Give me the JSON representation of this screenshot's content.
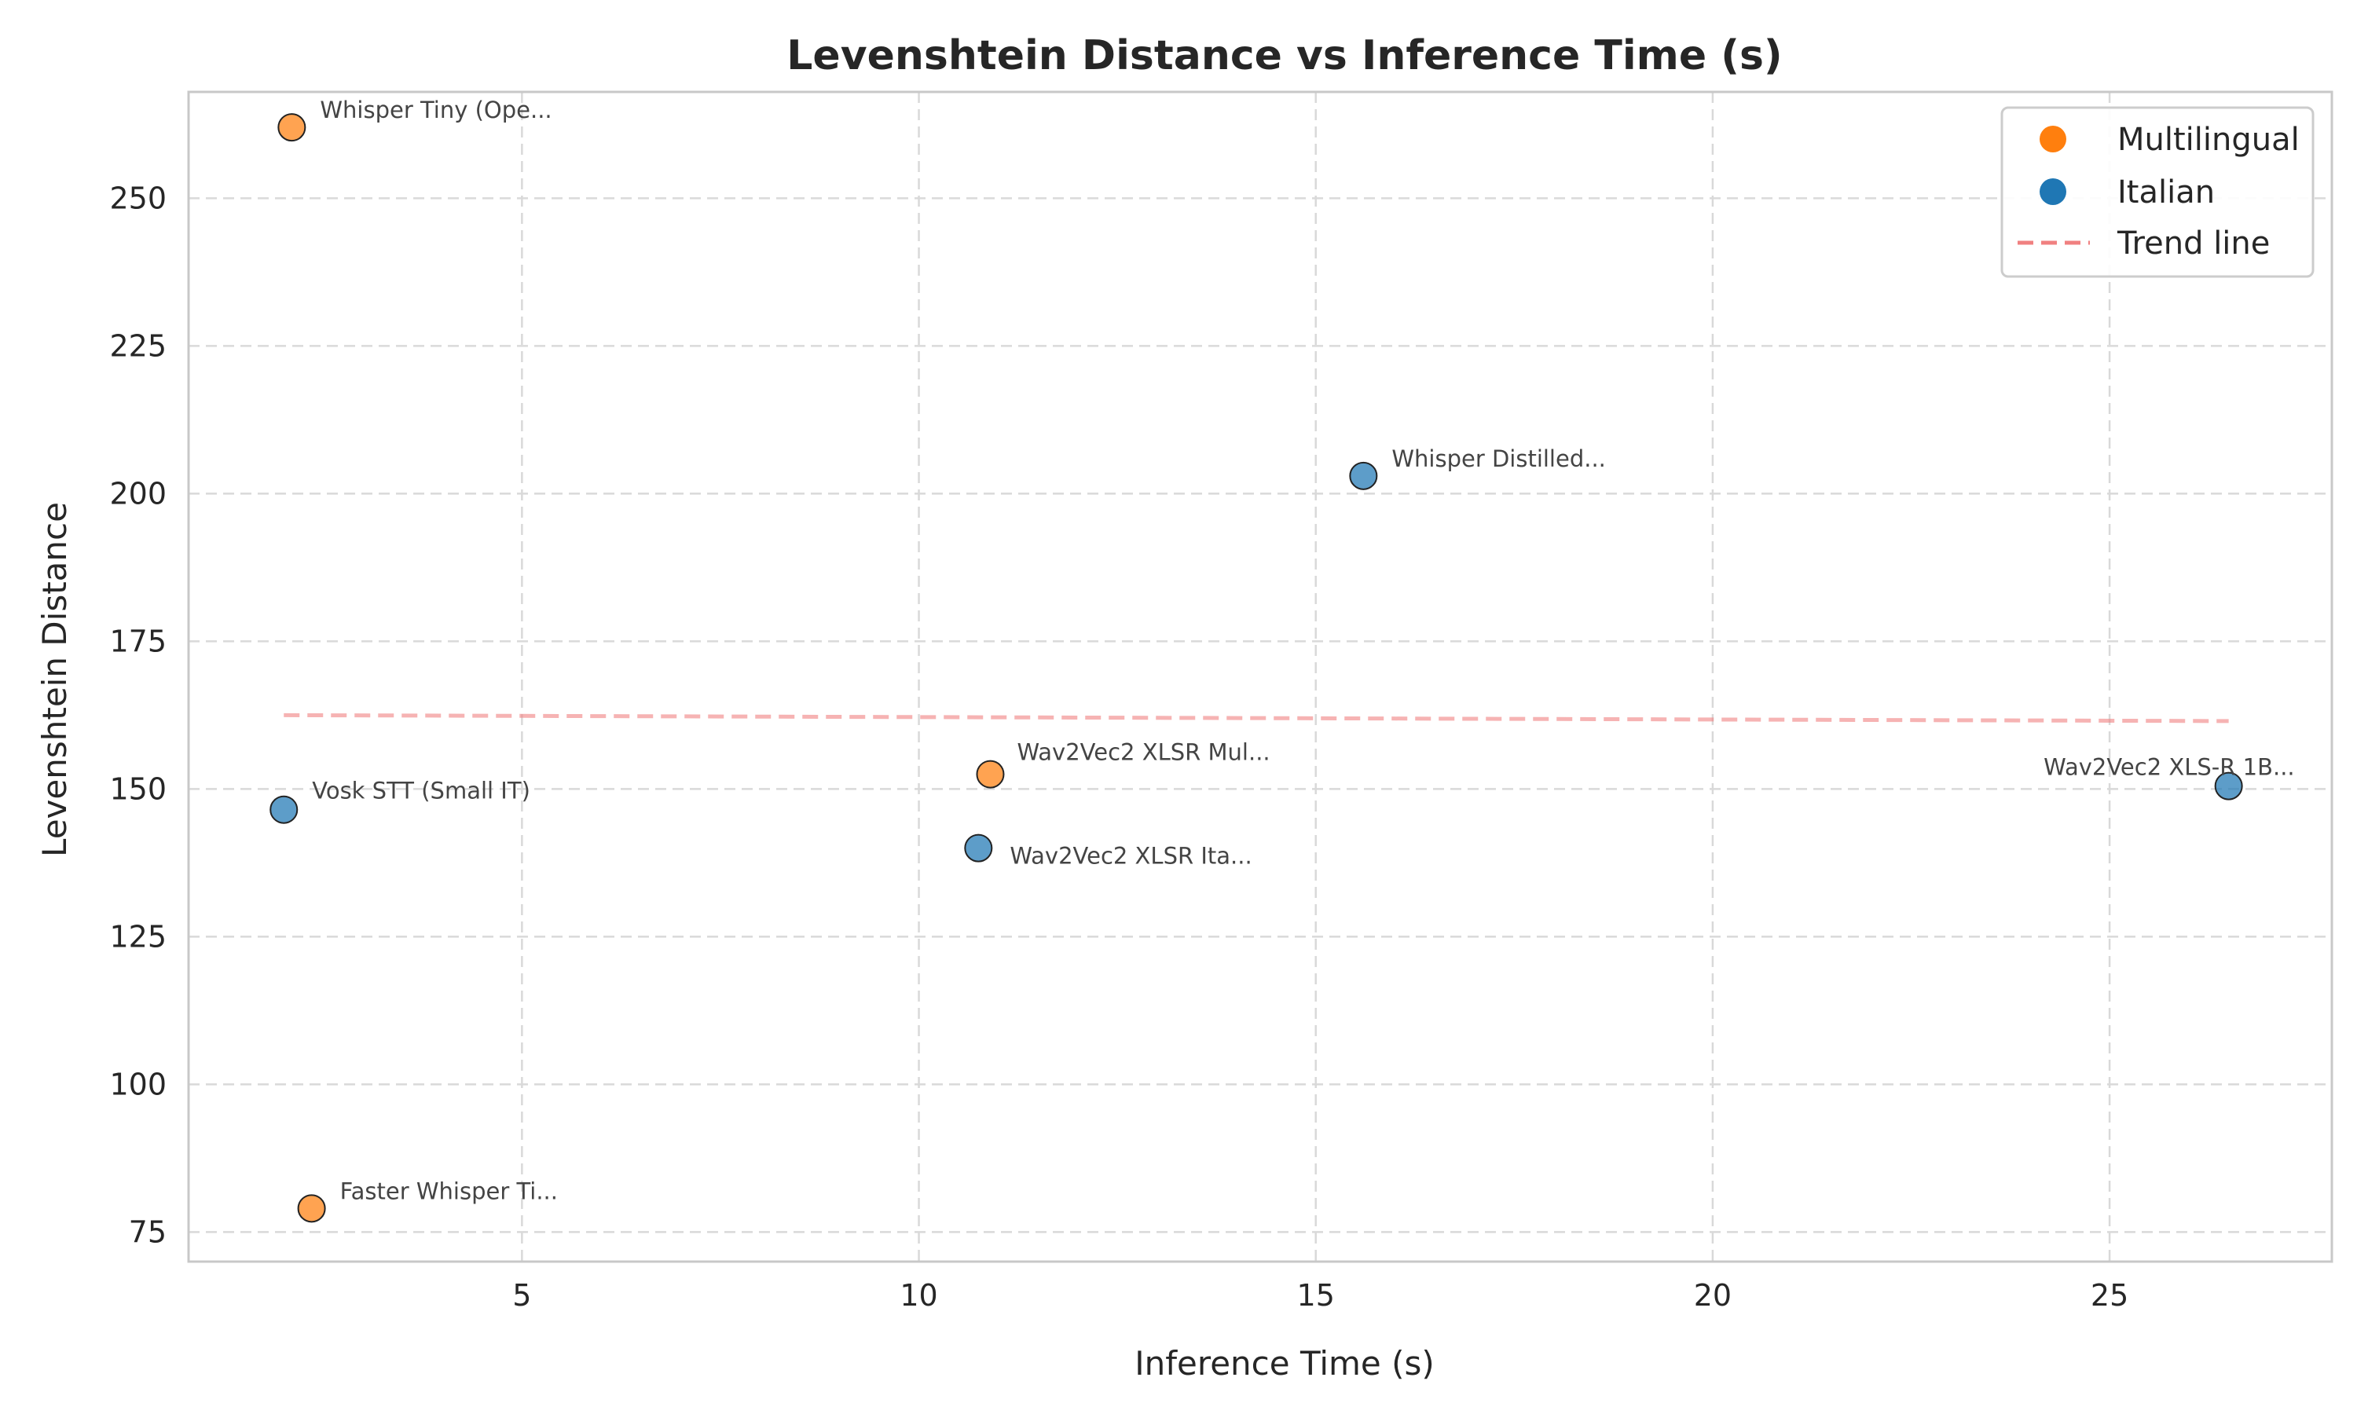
{
  "chart_data": {
    "type": "scatter",
    "title": "Levenshtein Distance vs Inference Time (s)",
    "xlabel": "Inference Time (s)",
    "ylabel": "Levenshtein Distance",
    "xlim": [
      0.8,
      27.8
    ],
    "ylim": [
      70,
      268
    ],
    "x_ticks": [
      5,
      10,
      15,
      20,
      25
    ],
    "y_ticks": [
      75,
      100,
      125,
      150,
      175,
      200,
      225,
      250
    ],
    "grid": true,
    "legend_position": "top-right",
    "colors": {
      "Multilingual": "#ff7f0e",
      "Italian": "#1f77b4",
      "trend": "#f08080"
    },
    "legend": [
      "Multilingual",
      "Italian",
      "Trend line"
    ],
    "points": [
      {
        "label": "Whisper Tiny (Ope...",
        "x": 2.1,
        "y": 262,
        "group": "Multilingual"
      },
      {
        "label": "Whisper Distilled...",
        "x": 15.6,
        "y": 203,
        "group": "Italian"
      },
      {
        "label": "Wav2Vec2 XLSR Mul...",
        "x": 10.9,
        "y": 152.5,
        "group": "Multilingual"
      },
      {
        "label": "Wav2Vec2 XLS-R 1B...",
        "x": 26.5,
        "y": 150.5,
        "group": "Italian"
      },
      {
        "label": "Vosk STT (Small IT)",
        "x": 2.0,
        "y": 146.5,
        "group": "Italian"
      },
      {
        "label": "Wav2Vec2 XLSR Ita...",
        "x": 10.75,
        "y": 140,
        "group": "Italian"
      },
      {
        "label": "Faster Whisper Ti...",
        "x": 2.35,
        "y": 79,
        "group": "Multilingual"
      }
    ],
    "trend_line": {
      "x": [
        2.0,
        26.5
      ],
      "y": [
        162.5,
        161.5
      ]
    }
  }
}
